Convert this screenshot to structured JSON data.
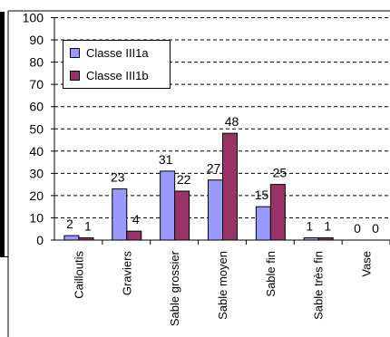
{
  "chart_data": {
    "type": "bar",
    "categories": [
      "Cailloutis",
      "Graviers",
      "Sable grossier",
      "Sable moyen",
      "Sable fin",
      "Sable très fin",
      "Vase"
    ],
    "series": [
      {
        "name": "Classe III1a",
        "values": [
          2,
          23,
          31,
          27,
          15,
          1,
          0
        ],
        "color": "#9999ff"
      },
      {
        "name": "Classe III1b",
        "values": [
          1,
          4,
          22,
          48,
          25,
          1,
          0
        ],
        "color": "#993366"
      }
    ],
    "ylim": [
      0,
      100
    ],
    "yticks": [
      "0",
      "10",
      "20",
      "30",
      "40",
      "50",
      "60",
      "70",
      "80",
      "90",
      "100"
    ],
    "grid": true,
    "legend_position": "top-left"
  }
}
